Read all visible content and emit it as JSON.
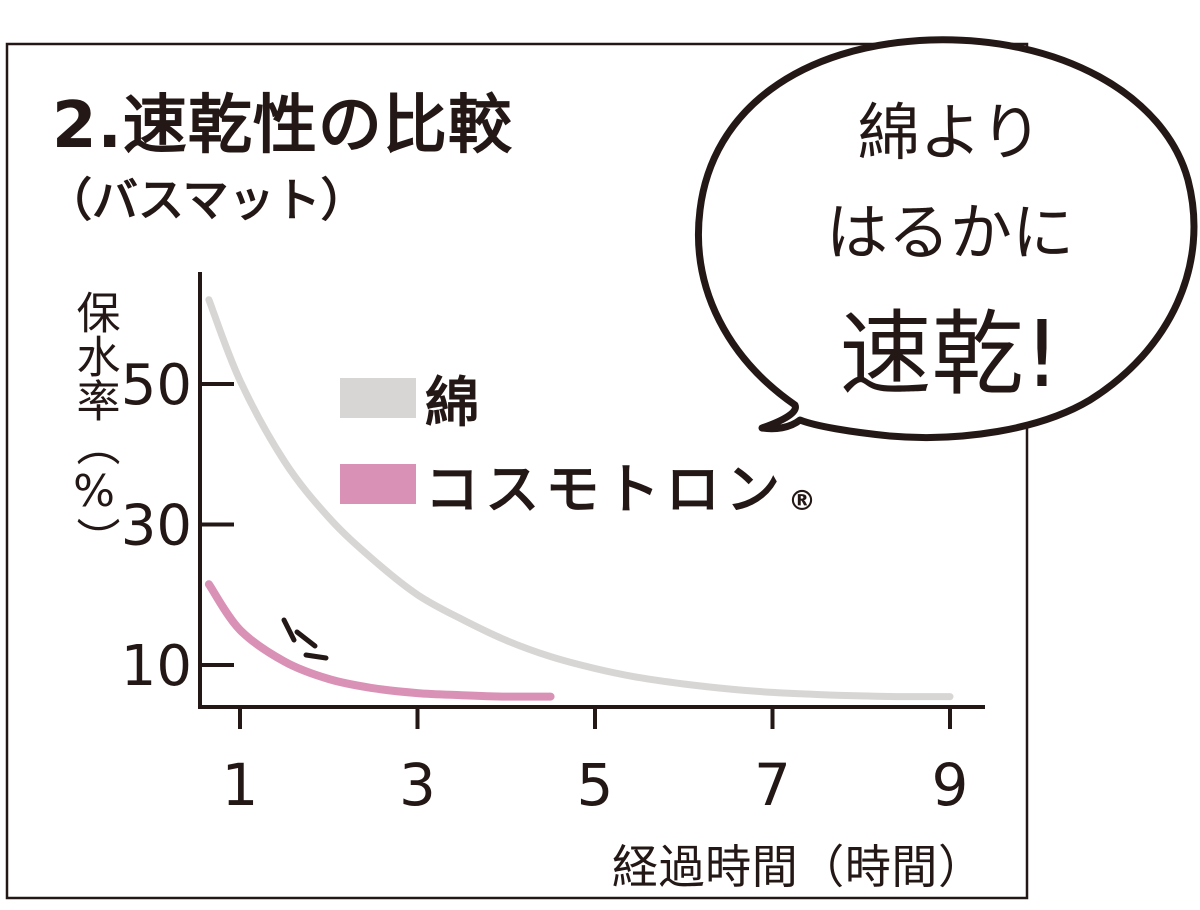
{
  "title": "2.速乾性の比較",
  "subtitle": "（バスマット）",
  "bubble": {
    "line1": "綿より",
    "line2": "はるかに",
    "line3": "速乾!"
  },
  "colors": {
    "cotton": "#d8d6d4",
    "cosmotron": "#d992b6",
    "ink": "#231815"
  },
  "chart_data": {
    "type": "line",
    "title": "2.速乾性の比較",
    "subtitle": "（バスマット）",
    "ylabel": "保水率（%）",
    "xlabel": "経過時間（時間）",
    "xlim": [
      0.6,
      9.2
    ],
    "ylim": [
      4,
      68
    ],
    "xticks": [
      1,
      3,
      5,
      7,
      9
    ],
    "yticks": [
      10,
      30,
      50
    ],
    "legend_position": "center",
    "series": [
      {
        "name": "綿",
        "x": [
          0.65,
          1,
          1.5,
          2,
          2.5,
          3,
          3.5,
          4,
          4.5,
          5,
          5.5,
          6,
          6.5,
          7,
          7.5,
          8,
          8.5,
          9
        ],
        "y": [
          62,
          50.5,
          39,
          31,
          25,
          20,
          16.5,
          13.5,
          11.2,
          9.5,
          8.2,
          7.3,
          6.6,
          6.1,
          5.8,
          5.6,
          5.5,
          5.5
        ]
      },
      {
        "name": "コスモトロン",
        "registered_mark": "®",
        "x": [
          0.65,
          1,
          1.5,
          2,
          2.5,
          3,
          3.5,
          4,
          4.5
        ],
        "y": [
          21.5,
          15,
          10.5,
          8,
          6.7,
          6,
          5.7,
          5.5,
          5.5
        ]
      }
    ]
  }
}
